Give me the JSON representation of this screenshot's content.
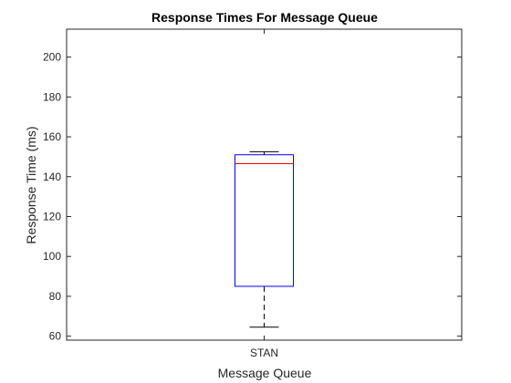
{
  "chart_data": {
    "type": "box",
    "title": "Response Times For Message Queue",
    "xlabel": "Message Queue",
    "ylabel": "Response Time (ms)",
    "categories": [
      "STAN"
    ],
    "ylim": [
      58,
      214
    ],
    "yticks": [
      60,
      80,
      100,
      120,
      140,
      160,
      180,
      200
    ],
    "boxes": [
      {
        "category": "STAN",
        "min": 64.5,
        "q1": 85,
        "median": 146.5,
        "q3": 151,
        "max": 152.5
      }
    ],
    "colors": {
      "box": "#0000ff",
      "median": "#ff0000",
      "whisker": "#000000",
      "axes": "#262626"
    },
    "grid": false,
    "legend": "none"
  }
}
